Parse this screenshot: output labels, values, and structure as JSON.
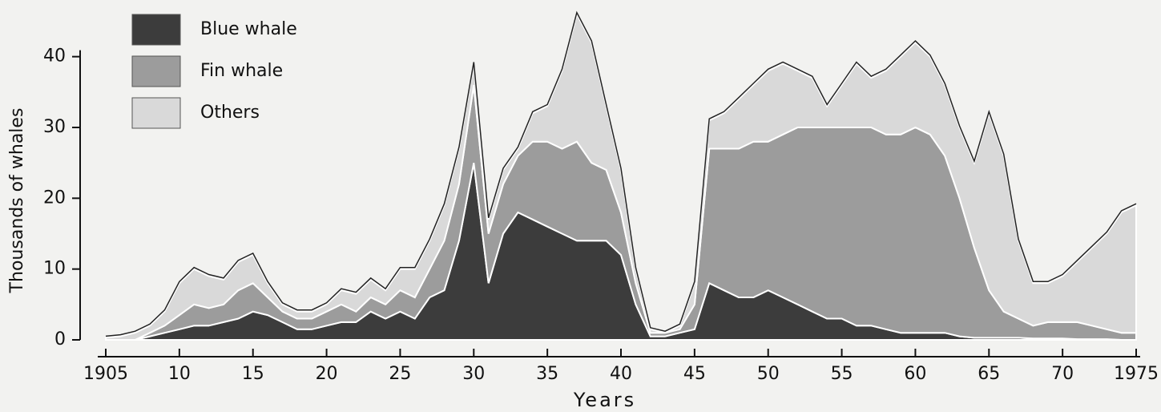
{
  "chart_data": {
    "type": "stacked_area",
    "y_label": "Thousands of whales",
    "x_label": "Years",
    "xlim": [
      1905,
      1975
    ],
    "ylim": [
      0,
      48
    ],
    "xticks": [
      1905,
      {
        "value": 1910,
        "label": "10"
      },
      {
        "value": 1915,
        "label": "15"
      },
      {
        "value": 1920,
        "label": "20"
      },
      {
        "value": 1925,
        "label": "25"
      },
      {
        "value": 1930,
        "label": "30"
      },
      {
        "value": 1935,
        "label": "35"
      },
      {
        "value": 1940,
        "label": "40"
      },
      {
        "value": 1945,
        "label": "45"
      },
      {
        "value": 1950,
        "label": "50"
      },
      {
        "value": 1955,
        "label": "55"
      },
      {
        "value": 1960,
        "label": "60"
      },
      {
        "value": 1965,
        "label": "65"
      },
      {
        "value": 1970,
        "label": "70"
      },
      1975
    ],
    "yticks": [
      0,
      10,
      20,
      30,
      40
    ],
    "x": [
      1905,
      1906,
      1907,
      1908,
      1909,
      1910,
      1911,
      1912,
      1913,
      1914,
      1915,
      1916,
      1917,
      1918,
      1919,
      1920,
      1921,
      1922,
      1923,
      1924,
      1925,
      1926,
      1927,
      1928,
      1929,
      1930,
      1931,
      1932,
      1933,
      1934,
      1935,
      1936,
      1937,
      1938,
      1939,
      1940,
      1941,
      1942,
      1943,
      1944,
      1945,
      1946,
      1947,
      1948,
      1949,
      1950,
      1951,
      1952,
      1953,
      1954,
      1955,
      1956,
      1957,
      1958,
      1959,
      1960,
      1961,
      1962,
      1963,
      1964,
      1965,
      1966,
      1967,
      1968,
      1969,
      1970,
      1971,
      1972,
      1973,
      1974,
      1975
    ],
    "series": [
      {
        "name": "Blue whale",
        "color": "#3c3c3c",
        "values": [
          0,
          0,
          0,
          0.5,
          1,
          1.5,
          2,
          2,
          2.5,
          3,
          4,
          3.5,
          2.5,
          1.5,
          1.5,
          2,
          2.5,
          2.5,
          4,
          3,
          4,
          3,
          6,
          7,
          14,
          25,
          8,
          15,
          18,
          17,
          16,
          15,
          14,
          14,
          14,
          12,
          5,
          0.5,
          0.5,
          1,
          1.5,
          8,
          7,
          6,
          6,
          7,
          6,
          5,
          4,
          3,
          3,
          2,
          2,
          1.5,
          1,
          1,
          1,
          1,
          0.5,
          0.3,
          0.3,
          0.3,
          0.3,
          0.2,
          0.2,
          0.2,
          0.1,
          0.1,
          0.1,
          0,
          0
        ]
      },
      {
        "name": "Fin whale",
        "color": "#9c9c9c",
        "values": [
          0,
          0,
          0,
          0.5,
          1,
          2,
          3,
          2.5,
          2.5,
          4,
          4,
          2.5,
          1.5,
          1.5,
          1.5,
          2,
          2.5,
          1.5,
          2,
          2,
          3,
          3,
          4,
          7,
          8,
          11,
          7,
          7,
          8,
          11,
          12,
          12,
          14,
          11,
          10,
          6,
          3,
          0.5,
          0.5,
          0.5,
          3.5,
          19,
          20,
          21,
          22,
          21,
          23,
          25,
          26,
          27,
          27,
          28,
          28,
          27.5,
          28,
          29,
          28,
          25,
          19.5,
          12.7,
          6.7,
          3.7,
          2.7,
          1.8,
          2.3,
          2.3,
          2.4,
          1.9,
          1.4,
          1,
          1
        ]
      },
      {
        "name": "Others",
        "color": "#d9d9d9",
        "values": [
          0.3,
          0.5,
          1,
          1,
          2,
          4.5,
          5,
          4.5,
          3.5,
          4,
          4,
          2,
          1,
          1,
          1,
          1,
          2,
          2.5,
          2.5,
          2,
          3,
          4,
          4,
          5,
          5,
          3,
          2,
          2,
          1,
          4,
          5,
          11,
          18,
          17,
          9,
          6,
          2,
          0.5,
          0,
          0.5,
          3,
          4,
          5,
          7,
          8,
          10,
          10,
          8,
          7,
          3,
          6,
          9,
          7,
          9,
          11,
          12,
          11,
          10,
          10,
          12,
          25,
          22,
          11,
          6,
          5.5,
          6.5,
          8.5,
          11,
          13.5,
          17,
          18
        ]
      }
    ]
  }
}
